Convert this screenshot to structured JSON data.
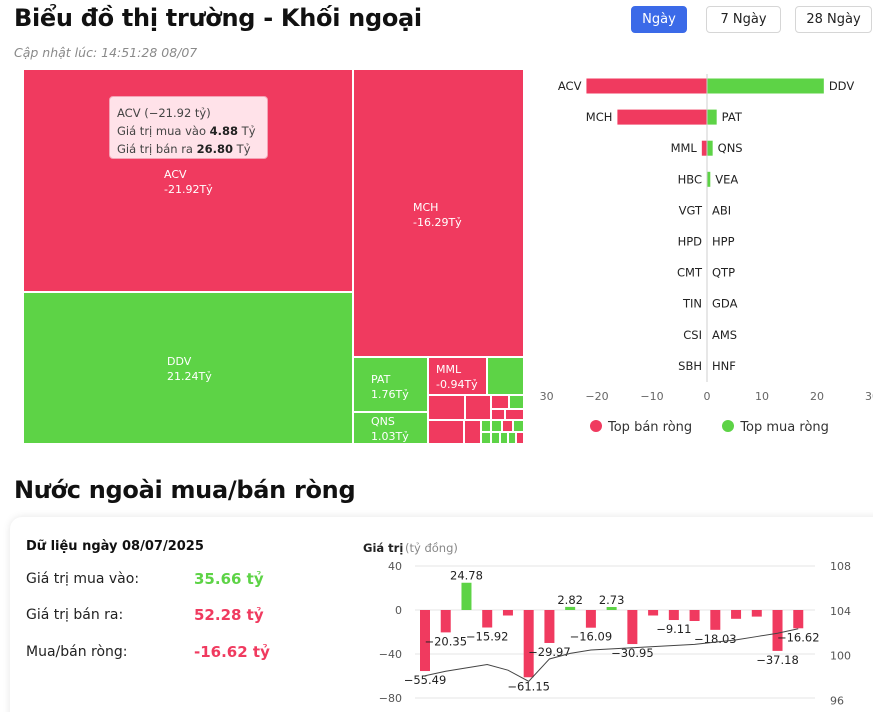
{
  "header": {
    "title": "Biểu đồ thị trường - Khối ngoại",
    "updated": "Cập nhật lúc: 14:51:28 08/07",
    "tabs": [
      "Ngày",
      "7 Ngày",
      "28 Ngày"
    ],
    "active_tab": "Ngày"
  },
  "treemap": {
    "cells": [
      {
        "code": "ACV",
        "value": "-21.92Tỷ"
      },
      {
        "code": "DDV",
        "value": "21.24Tỷ"
      },
      {
        "code": "MCH",
        "value": "-16.29Tỷ"
      },
      {
        "code": "PAT",
        "value": "1.76Tỷ"
      },
      {
        "code": "QNS",
        "value": "1.03Tỷ"
      },
      {
        "code": "MML",
        "value": "-0.94Tỷ"
      }
    ],
    "tooltip": {
      "title": "ACV (−21.92 tỷ)",
      "buy_label": "Giá trị mua vào",
      "buy_value": "4.88",
      "buy_unit": "Tỷ",
      "sell_label": "Giá trị bán ra",
      "sell_value": "26.80",
      "sell_unit": "Tỷ"
    }
  },
  "colors": {
    "sell": "#f03a5f",
    "buy": "#5dd346",
    "accent": "#3b6ae8"
  },
  "chart_data": [
    {
      "type": "bar",
      "orientation": "horizontal",
      "left_labels": [
        "ACV",
        "MCH",
        "MML",
        "HBC",
        "VGT",
        "HPD",
        "CMT",
        "TIN",
        "CSI",
        "SBH"
      ],
      "right_labels": [
        "DDV",
        "PAT",
        "QNS",
        "VEA",
        "ABI",
        "HPP",
        "QTP",
        "GDA",
        "AMS",
        "HNF"
      ],
      "series": [
        {
          "name": "Top bán ròng",
          "values": [
            -21.92,
            -16.29,
            -0.94,
            0,
            0,
            0,
            0,
            0,
            0,
            0
          ]
        },
        {
          "name": "Top mua ròng",
          "values": [
            21.24,
            1.76,
            1.03,
            0.6,
            0,
            0,
            0,
            0,
            0,
            0
          ]
        }
      ],
      "xlim": [
        -30,
        30
      ],
      "xticks": [
        "−30",
        "−20",
        "−10",
        "0",
        "10",
        "20",
        "30"
      ],
      "legend": "bottom"
    },
    {
      "type": "bar",
      "ylabel": "Giá trị",
      "yunit": "(tỷ đồng)",
      "ylim": [
        -80,
        40
      ],
      "yticks": [
        "40",
        "0",
        "−40",
        "−80"
      ],
      "y2lim": [
        96,
        108
      ],
      "y2ticks": [
        "108",
        "104",
        "100",
        "96"
      ],
      "values": [
        -55.49,
        -20.35,
        24.78,
        -15.92,
        -5,
        -61.15,
        -29.97,
        2.82,
        -16.09,
        2.73,
        -30.95,
        -5,
        -9.11,
        -10,
        -18.03,
        -8,
        -6,
        -37.18,
        -16.62
      ],
      "data_labels": {
        "0": "−55.49",
        "1": "−20.35",
        "2": "24.78",
        "3": "−15.92",
        "5": "−61.15",
        "6": "−29.97",
        "7": "2.82",
        "8": "−16.09",
        "9": "2.73",
        "10": "−30.95",
        "12": "−9.11",
        "14": "−18.03",
        "17": "−37.18",
        "18": "−16.62"
      },
      "line_values": [
        98.2,
        98.6,
        98.9,
        99.2,
        98.7,
        97.7,
        99.7,
        100.2,
        100.5,
        100.6,
        100.7,
        100.8,
        100.9,
        101.0,
        101.2,
        101.4,
        101.7,
        102.0,
        102.4
      ]
    }
  ],
  "section2": {
    "title": "Nước ngoài mua/bán ròng",
    "date_label": "Dữ liệu ngày 08/07/2025",
    "stats": [
      {
        "label": "Giá trị mua vào:",
        "value": "35.66 tỷ",
        "color": "#5dd346"
      },
      {
        "label": "Giá trị bán ra:",
        "value": "52.28 tỷ",
        "color": "#f03a5f"
      },
      {
        "label": "Mua/bán ròng:",
        "value": "-16.62 tỷ",
        "color": "#f03a5f"
      }
    ]
  }
}
